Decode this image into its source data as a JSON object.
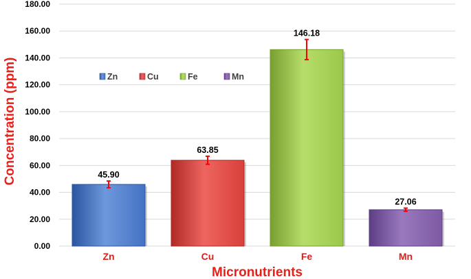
{
  "chart_data": {
    "type": "bar",
    "title": "",
    "xlabel": "Micronutrients",
    "ylabel": "Concentration (ppm)",
    "categories": [
      "Zn",
      "Cu",
      "Fe",
      "Mn"
    ],
    "values": [
      45.9,
      63.85,
      146.18,
      27.06
    ],
    "data_labels": [
      "45.90",
      "63.85",
      "146.18",
      "27.06"
    ],
    "error_bars": [
      2.5,
      3.0,
      7.5,
      1.2
    ],
    "ylim": [
      0,
      180
    ],
    "yticks": [
      0,
      20,
      40,
      60,
      80,
      100,
      120,
      140,
      160,
      180
    ],
    "ytick_labels": [
      "0.00",
      "20.00",
      "40.00",
      "60.00",
      "80.00",
      "100.00",
      "120.00",
      "140.00",
      "160.00",
      "180.00"
    ],
    "grid": true,
    "legend": {
      "placement": "top-left inside plot",
      "entries": [
        "Zn",
        "Cu",
        "Fe",
        "Mn"
      ]
    },
    "colors": {
      "bars": [
        "#4472c4",
        "#d9403a",
        "#9bc84a",
        "#7d5aa3"
      ],
      "bars_light": [
        "#6e98dc",
        "#ee6560",
        "#b6dd6a",
        "#9a79bf"
      ],
      "bars_dark": [
        "#2a55a0",
        "#b02a25",
        "#789f30",
        "#5d3e84"
      ],
      "error_bar": "#ff0000",
      "axis_title": "#e8201a",
      "category_label": "#d9201c",
      "grid": "#d9d9d9"
    }
  }
}
